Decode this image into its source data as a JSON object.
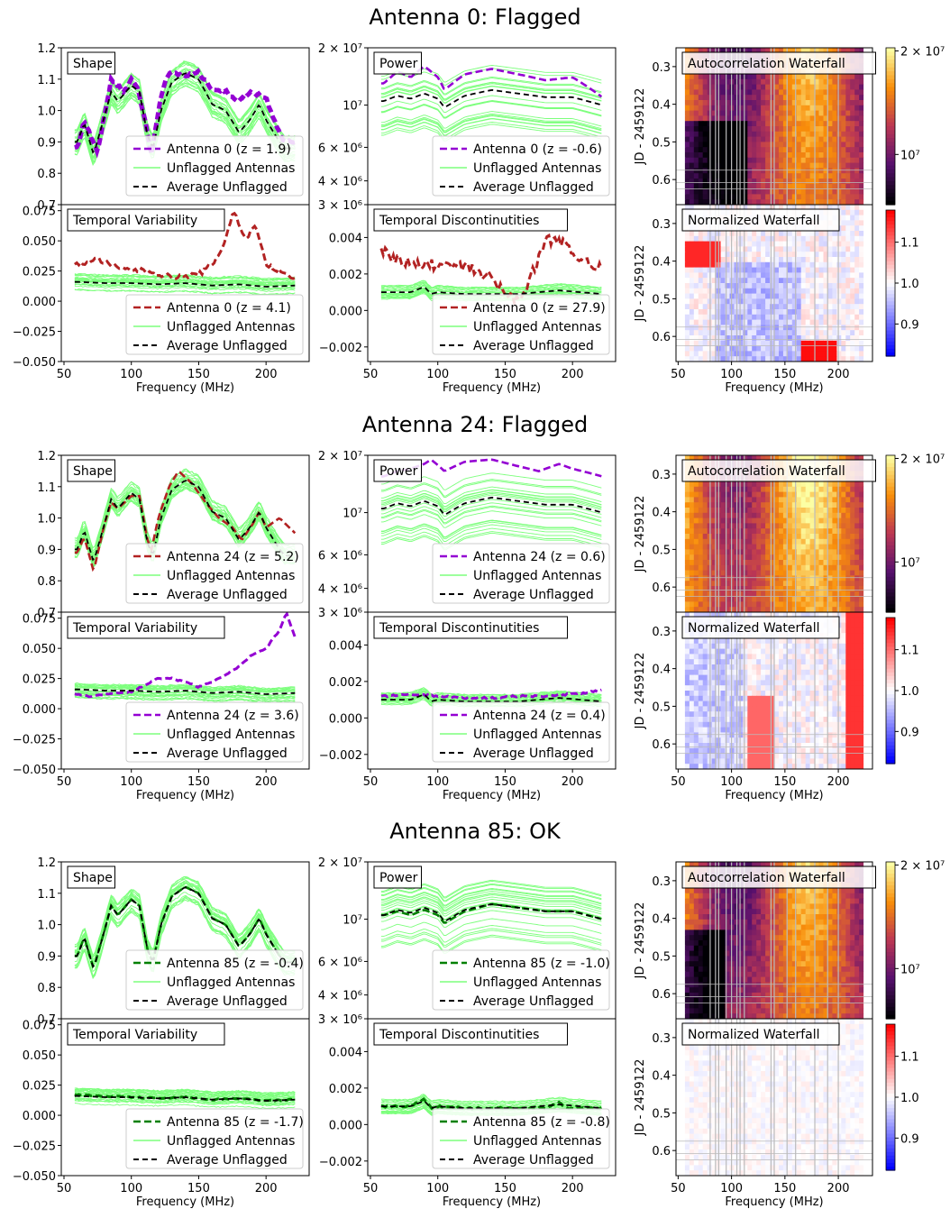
{
  "chart_data": {
    "type": "line",
    "colors": {
      "flagged_antenna": "#b22222",
      "ok_antenna": "#9400d3",
      "good_antenna": "#008000",
      "unflagged": "#7dff7d",
      "average": "#000000"
    },
    "common": {
      "xlabel": "Frequency (MHz)",
      "x_ticks": [
        "50",
        "100",
        "150",
        "200"
      ],
      "xlim": [
        48,
        232
      ],
      "jd_label": "JD - 2459122",
      "jd_ticks": [
        "0.3",
        "0.4",
        "0.5",
        "0.6"
      ],
      "shape_ticks": [
        "1.2",
        "1.1",
        "1.0",
        "0.9",
        "0.8",
        "0.7"
      ],
      "power_ticks": [
        "2 × 10⁷",
        "10⁷",
        "6 × 10⁶",
        "4 × 10⁶",
        "3 × 10⁶"
      ],
      "var_ticks": [
        "0.075",
        "0.050",
        "0.025",
        "0.000",
        "−0.025",
        "−0.050"
      ],
      "disc_ticks": [
        "0.004",
        "0.002",
        "0.000",
        "−0.002"
      ],
      "auto_cbar_ticks": [
        "2 × 10⁷",
        "10⁷"
      ],
      "norm_cbar_ticks": [
        "1.1",
        "1.0",
        "0.9"
      ],
      "panel_labels": {
        "shape": "Shape",
        "power": "Power",
        "var": "Temporal Variability",
        "disc": "Temporal Discontinutities",
        "auto": "Autocorrelation Waterfall",
        "norm": "Normalized Waterfall"
      },
      "legend_unflagged": "Unflagged Antennas",
      "legend_average": "Average Unflagged"
    },
    "antennas": [
      {
        "title": "Antenna 0: Flagged",
        "shape_legend": "Antenna 0 (z = 1.9)",
        "shape_color": "#9400d3",
        "power_legend": "Antenna 0 (z = -0.6)",
        "power_color": "#9400d3",
        "var_legend": "Antenna 0 (z = 4.1)",
        "var_color": "#b22222",
        "disc_legend": "Antenna 0 (z = 27.9)",
        "disc_color": "#b22222",
        "shape_points": [
          [
            60,
            0.88
          ],
          [
            65,
            0.97
          ],
          [
            70,
            0.92
          ],
          [
            75,
            0.87
          ],
          [
            80,
            0.98
          ],
          [
            85,
            1.1
          ],
          [
            90,
            1.08
          ],
          [
            95,
            1.06
          ],
          [
            100,
            1.1
          ],
          [
            105,
            1.07
          ],
          [
            110,
            0.97
          ],
          [
            115,
            0.86
          ],
          [
            120,
            1.0
          ],
          [
            125,
            1.1
          ],
          [
            130,
            1.12
          ],
          [
            140,
            1.11
          ],
          [
            150,
            1.12
          ],
          [
            160,
            1.07
          ],
          [
            170,
            1.06
          ],
          [
            180,
            1.03
          ],
          [
            190,
            1.06
          ],
          [
            200,
            1.04
          ],
          [
            210,
            0.93
          ],
          [
            214,
            0.9
          ]
        ],
        "power_points": [
          [
            60,
            13000000.0
          ],
          [
            70,
            15000000.0
          ],
          [
            80,
            14000000.0
          ],
          [
            90,
            16000000.0
          ],
          [
            100,
            14000000.0
          ],
          [
            105,
            12000000.0
          ],
          [
            120,
            14500000.0
          ],
          [
            140,
            15500000.0
          ],
          [
            160,
            14500000.0
          ],
          [
            180,
            13500000.0
          ],
          [
            200,
            14000000.0
          ],
          [
            222,
            11000000.0
          ]
        ],
        "var_points": [
          [
            60,
            0.03
          ],
          [
            75,
            0.035
          ],
          [
            90,
            0.027
          ],
          [
            110,
            0.025
          ],
          [
            130,
            0.02
          ],
          [
            150,
            0.022
          ],
          [
            160,
            0.03
          ],
          [
            168,
            0.045
          ],
          [
            176,
            0.075
          ],
          [
            185,
            0.05
          ],
          [
            192,
            0.065
          ],
          [
            200,
            0.03
          ],
          [
            210,
            0.025
          ],
          [
            222,
            0.018
          ]
        ],
        "disc_points": [
          [
            60,
            0.0032
          ],
          [
            80,
            0.0025
          ],
          [
            100,
            0.0025
          ],
          [
            120,
            0.0024
          ],
          [
            140,
            0.0018
          ],
          [
            150,
            0.0009
          ],
          [
            160,
            0.0005
          ],
          [
            170,
            0.002
          ],
          [
            180,
            0.0038
          ],
          [
            190,
            0.004
          ],
          [
            200,
            0.003
          ],
          [
            210,
            0.0028
          ],
          [
            222,
            0.0022
          ]
        ]
      },
      {
        "title": "Antenna 24: Flagged",
        "shape_legend": "Antenna 24 (z = 5.2)",
        "shape_color": "#b22222",
        "power_legend": "Antenna 24 (z = 0.6)",
        "power_color": "#9400d3",
        "var_legend": "Antenna 24 (z = 3.6)",
        "var_color": "#9400d3",
        "disc_legend": "Antenna 24 (z = 0.4)",
        "disc_color": "#9400d3",
        "shape_points": [
          [
            60,
            0.89
          ],
          [
            65,
            0.94
          ],
          [
            72,
            0.83
          ],
          [
            80,
            0.98
          ],
          [
            85,
            1.05
          ],
          [
            90,
            1.03
          ],
          [
            100,
            1.07
          ],
          [
            106,
            1.07
          ],
          [
            112,
            0.93
          ],
          [
            115,
            0.9
          ],
          [
            120,
            1.0
          ],
          [
            128,
            1.1
          ],
          [
            135,
            1.15
          ],
          [
            145,
            1.11
          ],
          [
            155,
            1.05
          ],
          [
            165,
            1.0
          ],
          [
            175,
            0.97
          ],
          [
            182,
            0.93
          ],
          [
            190,
            0.98
          ],
          [
            195,
            1.02
          ],
          [
            200,
            0.97
          ],
          [
            210,
            1.0
          ],
          [
            222,
            0.95
          ]
        ],
        "power_points": [
          [
            60,
            15500000.0
          ],
          [
            70,
            16500000.0
          ],
          [
            80,
            17000000.0
          ],
          [
            90,
            18000000.0
          ],
          [
            95,
            19000000.0
          ],
          [
            105,
            16500000.0
          ],
          [
            120,
            18500000.0
          ],
          [
            140,
            19000000.0
          ],
          [
            160,
            17500000.0
          ],
          [
            175,
            16500000.0
          ],
          [
            190,
            18000000.0
          ],
          [
            200,
            17000000.0
          ],
          [
            222,
            15500000.0
          ]
        ],
        "var_points": [
          [
            60,
            0.012
          ],
          [
            70,
            0.01
          ],
          [
            80,
            0.012
          ],
          [
            100,
            0.014
          ],
          [
            120,
            0.025
          ],
          [
            130,
            0.025
          ],
          [
            140,
            0.022
          ],
          [
            150,
            0.018
          ],
          [
            160,
            0.022
          ],
          [
            170,
            0.028
          ],
          [
            180,
            0.035
          ],
          [
            190,
            0.045
          ],
          [
            200,
            0.05
          ],
          [
            210,
            0.065
          ],
          [
            215,
            0.08
          ],
          [
            222,
            0.058
          ]
        ],
        "disc_points": [
          [
            60,
            0.0012
          ],
          [
            80,
            0.0013
          ],
          [
            100,
            0.0012
          ],
          [
            120,
            0.0011
          ],
          [
            140,
            0.0011
          ],
          [
            160,
            0.0012
          ],
          [
            180,
            0.0012
          ],
          [
            200,
            0.0013
          ],
          [
            222,
            0.0015
          ]
        ]
      },
      {
        "title": "Antenna 85: OK",
        "shape_legend": "Antenna 85 (z = -0.4)",
        "shape_color": "#008000",
        "power_legend": "Antenna 85 (z = -1.0)",
        "power_color": "#008000",
        "var_legend": "Antenna 85 (z = -1.7)",
        "var_color": "#008000",
        "disc_legend": "Antenna 85 (z = -0.8)",
        "disc_color": "#008000",
        "shape_points": [
          [
            60,
            0.9
          ],
          [
            65,
            0.96
          ],
          [
            72,
            0.86
          ],
          [
            80,
            0.98
          ],
          [
            85,
            1.06
          ],
          [
            90,
            1.03
          ],
          [
            100,
            1.08
          ],
          [
            106,
            1.06
          ],
          [
            112,
            0.92
          ],
          [
            116,
            0.88
          ],
          [
            122,
            1.0
          ],
          [
            130,
            1.09
          ],
          [
            140,
            1.12
          ],
          [
            150,
            1.1
          ],
          [
            160,
            1.02
          ],
          [
            170,
            1.0
          ],
          [
            180,
            0.93
          ],
          [
            188,
            0.97
          ],
          [
            195,
            1.02
          ],
          [
            200,
            0.97
          ],
          [
            210,
            0.9
          ],
          [
            214,
            0.88
          ]
        ],
        "power_points": [
          [
            60,
            10500000.0
          ],
          [
            70,
            11000000.0
          ],
          [
            80,
            10500000.0
          ],
          [
            90,
            11200000.0
          ],
          [
            100,
            10500000.0
          ],
          [
            105,
            9500000.0
          ],
          [
            120,
            11000000.0
          ],
          [
            140,
            12000000.0
          ],
          [
            160,
            11500000.0
          ],
          [
            180,
            11000000.0
          ],
          [
            200,
            11000000.0
          ],
          [
            222,
            10000000.0
          ]
        ],
        "var_points": [
          [
            60,
            0.017
          ],
          [
            80,
            0.016
          ],
          [
            100,
            0.015
          ],
          [
            120,
            0.014
          ],
          [
            140,
            0.015
          ],
          [
            160,
            0.013
          ],
          [
            180,
            0.014
          ],
          [
            200,
            0.012
          ],
          [
            222,
            0.013
          ]
        ],
        "disc_points": [
          [
            60,
            0.001
          ],
          [
            80,
            0.001
          ],
          [
            90,
            0.0014
          ],
          [
            95,
            0.0009
          ],
          [
            100,
            0.001
          ],
          [
            120,
            0.0009
          ],
          [
            140,
            0.0009
          ],
          [
            160,
            0.0009
          ],
          [
            180,
            0.0009
          ],
          [
            190,
            0.0012
          ],
          [
            195,
            0.0009
          ],
          [
            222,
            0.0009
          ]
        ]
      }
    ]
  }
}
